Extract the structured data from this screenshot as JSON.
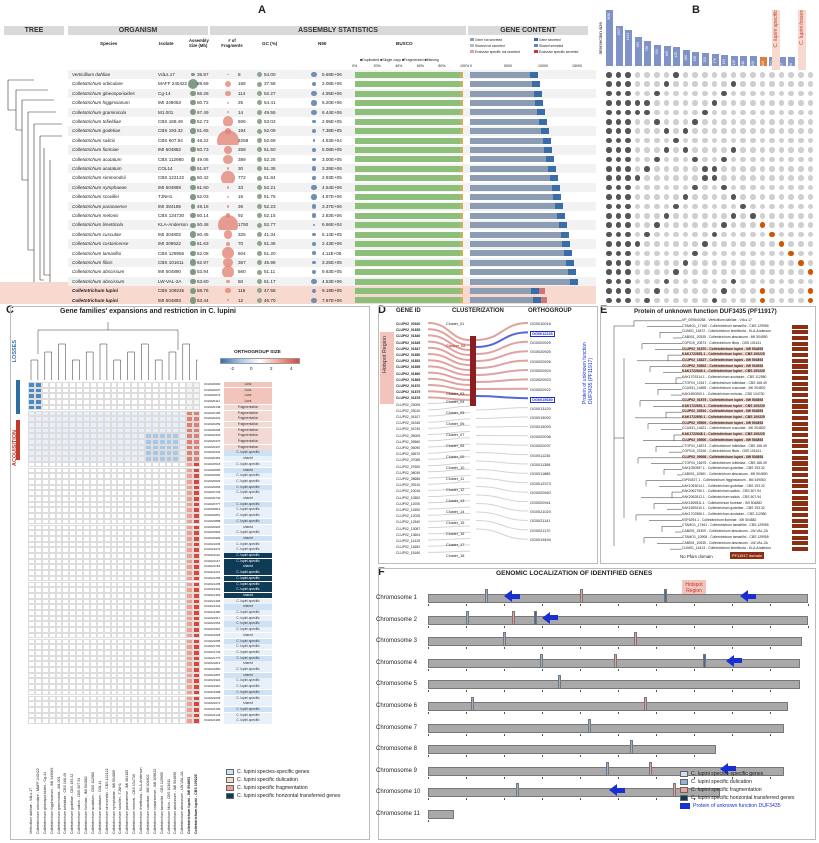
{
  "panels": {
    "A": "A",
    "B": "B",
    "C": "C",
    "D": "D",
    "E": "E",
    "F": "F"
  },
  "panelA": {
    "headers": {
      "tree": "TREE",
      "organism": "ORGANISM",
      "assembly": "ASSEMBLY STATISTICS",
      "gene_content": "GENE CONTENT"
    },
    "columns": {
      "species": "Species",
      "isolate": "Isolate",
      "size": "Assembly Size (Mb)",
      "fragments": "# of Fragments",
      "gc": "GC (%)",
      "n50": "N50",
      "busco": "BUSCO"
    },
    "busco_legend": "■Duplicated ■Single copy ■Fragmented ■Missing",
    "busco_ticks": [
      "0%",
      "20%",
      "40%",
      "60%",
      "80%",
      "100%"
    ],
    "gene_ticks": [
      "0",
      "5000",
      "10000",
      "15000"
    ],
    "gene_legend": [
      "Gene not secreted",
      "Shared not secreted",
      "Exclusive specific not secreted",
      "Gene secreted",
      "Shared secreted",
      "Exclusive specific secreted"
    ],
    "rows": [
      {
        "sp": "Verticillium dahliae",
        "iso": "VdLs.17",
        "size": "35.97",
        "frag": "8",
        "gc": "54.00",
        "n50": "5.69E+06"
      },
      {
        "sp": "Colletotrichum orbiculare",
        "iso": "MAFF 240422",
        "size": "89.69",
        "frag": "168",
        "gc": "37.58",
        "n50": "2.08E+06"
      },
      {
        "sp": "Colletotrichum gloeosporioides",
        "iso": "Cg-14",
        "size": "56.28",
        "frag": "114",
        "gc": "52.27",
        "n50": "4.95E+06"
      },
      {
        "sp": "Colletotrichum higginsianum",
        "iso": "IMI 349063",
        "size": "50.72",
        "frag": "25",
        "gc": "54.41",
        "n50": "5.20E+06"
      },
      {
        "sp": "Colletotrichum graminicola",
        "iso": "M1.001",
        "size": "57.49",
        "frag": "14",
        "gc": "49.55",
        "n50": "6.44E+06"
      },
      {
        "sp": "Colletotrichum tofieldiae",
        "iso": "CBS 168.49",
        "size": "52.73",
        "frag": "506",
        "gc": "53.02",
        "n50": "2.95E+05"
      },
      {
        "sp": "Colletotrichum godetiae",
        "iso": "CBS 193.32",
        "size": "51.65",
        "frag": "194",
        "gc": "52.09",
        "n50": "7.38E+05"
      },
      {
        "sp": "Colletotrichum salicis",
        "iso": "CBS 607.94",
        "size": "48.22",
        "frag": "2258",
        "gc": "52.69",
        "n50": "4.63E+04"
      },
      {
        "sp": "Colletotrichum fioriniae",
        "iso": "IMI 504882",
        "size": "50.73",
        "frag": "258",
        "gc": "51.50",
        "n50": "5.08E+05"
      },
      {
        "sp": "Colletotrichum acutatum",
        "iso": "CBS 112980",
        "size": "49.06",
        "frag": "389",
        "gc": "52.25",
        "n50": "3.00E+05"
      },
      {
        "sp": "Colletotrichum acutatum",
        "iso": "COL14",
        "size": "51.87",
        "frag": "30",
        "gc": "51.38",
        "n50": "3.28E+06"
      },
      {
        "sp": "Colletotrichum simmondsii",
        "iso": "CBS 122122",
        "size": "50.42",
        "frag": "772",
        "gc": "51.84",
        "n50": "2.93E+05"
      },
      {
        "sp": "Colletotrichum nymphaeae",
        "iso": "IMI 504889",
        "size": "51.60",
        "frag": "33",
        "gc": "52.21",
        "n50": "4.54E+06"
      },
      {
        "sp": "Colletotrichum scovillei",
        "iso": "TJNH1",
        "size": "52.03",
        "frag": "16",
        "gc": "51.76",
        "n50": "4.87E+06"
      },
      {
        "sp": "Colletotrichum paranaense",
        "iso": "IMI 384185",
        "size": "49.18",
        "frag": "36",
        "gc": "52.23",
        "n50": "3.37E+06"
      },
      {
        "sp": "Colletotrichum melonis",
        "iso": "CBS 134730",
        "size": "50.14",
        "frag": "92",
        "gc": "52.15",
        "n50": "2.83E+06"
      },
      {
        "sp": "Colletotrichum limetticola",
        "iso": "KLA-Anderson",
        "size": "50.48",
        "frag": "1750",
        "gc": "52.77",
        "n50": "6.66E+04"
      },
      {
        "sp": "Colletotrichum cuscutae",
        "iso": "IMI 304802",
        "size": "60.45",
        "frag": "325",
        "gc": "41.34",
        "n50": "5.14E+05"
      },
      {
        "sp": "Colletotrichum costaricense",
        "iso": "IMI 309622",
        "size": "51.63",
        "frag": "70",
        "gc": "51.36",
        "n50": "2.43E+06"
      },
      {
        "sp": "Colletotrichum tamarilloi",
        "iso": "CBS 129955",
        "size": "52.08",
        "frag": "604",
        "gc": "51.20",
        "n50": "4.11E+05"
      },
      {
        "sp": "Colletotrichum filicis",
        "iso": "CBS 101611",
        "size": "62.97",
        "frag": "367",
        "gc": "45.98",
        "n50": "3.25E+05"
      },
      {
        "sp": "Colletotrichum abscissum",
        "iso": "IMI 504890",
        "size": "53.94",
        "frag": "560",
        "gc": "51.11",
        "n50": "9.63E+05"
      },
      {
        "sp": "Colletotrichum abscissum",
        "iso": "LW-VAL-2A",
        "size": "53.60",
        "frag": "50",
        "gc": "51.17",
        "n50": "4.53E+06"
      },
      {
        "sp": "Colletotrichum lupini",
        "iso": "CBS 109225",
        "size": "58.76",
        "frag": "116",
        "gc": "47.58",
        "n50": "9.19E+05"
      },
      {
        "sp": "Colletotrichum lupini",
        "iso": "IMI 504893",
        "size": "63.44",
        "frag": "12",
        "gc": "46.70",
        "n50": "7.87E+06"
      }
    ]
  },
  "panelB": {
    "ylabel": "Intersection size",
    "col_labels": [
      "C. lupini specific",
      "C. lupini losses"
    ],
    "top_values": [
      "3636",
      "1897",
      "1494",
      "962",
      "726",
      "534",
      "465",
      "420",
      "280",
      "238",
      "203",
      "179",
      "149",
      "126",
      "118",
      "106",
      "104",
      "101",
      "97",
      "96",
      "88"
    ]
  },
  "panelC": {
    "title": "Gene families' expansions and restriction in C. lupini",
    "scale_title": "ORTHOGROUP SIZE",
    "scale_ticks": [
      "-2",
      "0",
      "2",
      "4"
    ],
    "losses": "LOSSES",
    "acquisition": "ACQUISITION",
    "labels": [
      "Loss",
      "Loss",
      "Loss",
      "Loss",
      "Fragmentation",
      "Fragmentation",
      "Fragmentation",
      "Fragmentation",
      "Fragmentation",
      "Fragmentation",
      "Fragmentation",
      "Fragmentation",
      "C. lupini-specific",
      "shared",
      "C. lupini-specific",
      "shared",
      "C. lupini-specific",
      "C. lupini-specific",
      "C. lupini-specific",
      "C. lupini-specific",
      "shared",
      "C. lupini-specific",
      "C. lupini-specific",
      "C. lupini-specific"
    ],
    "legend": [
      "C. lupini species-specific genes",
      "C. lupini specific dulication",
      "C. lupini specific fragmentation",
      "C. lupini specific horizontal transferred genes"
    ],
    "cols": [
      "Verticillium dahliae - VdLs.17",
      "Colletotrichum orbiculare - MAFF 240422",
      "Colletotrichum gloeosporioides - Cg-14",
      "Colletotrichum higginsianum - IMI 349063",
      "Colletotrichum graminicola - M1.001",
      "Colletotrichum tofieldiae - CBS 168.49",
      "Colletotrichum godetiae - CBS 193.32",
      "Colletotrichum salicis - CBS 607.94",
      "Colletotrichum fioriniae - IMI 504882",
      "Colletotrichum acutatum - CBS 112980",
      "Colletotrichum acutatum - COL14",
      "Colletotrichum simmondsii - CBS 122122",
      "Colletotrichum nymphaeae - IMI 504889",
      "Colletotrichum scovillei - TJNH1",
      "Colletotrichum paranaense - IMI 384185",
      "Colletotrichum melonis - CBS 134730",
      "Colletotrichum limetticola - KLA-Anderson",
      "Colletotrichum cuscutae - IMI 304802",
      "Colletotrichum costaricense - IMI 309622",
      "Colletotrichum tamarilloi - CBS 129955",
      "Colletotrichum filicis - CBS 101611",
      "Colletotrichum abscissum - IMI 504890",
      "Colletotrichum abscissum - LW-VAL-2A",
      "Colletotrichum lupini - IMI 504893",
      "Colletotrichum lupini - CBS 109225"
    ]
  },
  "panelD": {
    "headers": {
      "gene_id": "GENE ID",
      "clusterization": "CLUSTERIZATION",
      "orthogroup": "ORTHOGROUP"
    },
    "hotspot": "Hotspot Region",
    "side_label": "Protein of unknown function DUF3435 (PF11917)",
    "genes": [
      "CLUP02_00320",
      "CLUP02_01835",
      "CLUP02_01840",
      "CLUP02_01845",
      "CLUP02_01847",
      "CLUP02_01850",
      "CLUP02_01852",
      "CLUP02_01855",
      "CLUP02_01860",
      "CLUP02_01865",
      "CLUP02_01870",
      "CLUP02_01875",
      "CLUP02_01876",
      "CLUP02_03005",
      "CLUP02_03010",
      "CLUP02_04107",
      "CLUP02_04345",
      "CLUP02_04740",
      "CLUP02_05005",
      "CLUP02_05560",
      "CLUP02_06090",
      "CLUP02_06570",
      "CLUP02_07085",
      "CLUP02_07600",
      "CLUP02_08030",
      "CLUP02_08685",
      "CLUP02_09210",
      "CLUP02_10016",
      "CLUP02_10552",
      "CLUP02_11005",
      "CLUP02_11550",
      "CLUP02_12025",
      "CLUP02_12540",
      "CLUP02_13087",
      "CLUP02_13604",
      "CLUP02_14125",
      "CLUP02_14652",
      "CLUP02_15160"
    ],
    "clusters": [
      "Cluster_01",
      "Cluster_02",
      "Cluster_03",
      "Cluster_04",
      "Cluster_05",
      "Cluster_06",
      "Cluster_07",
      "Cluster_08",
      "Cluster_09",
      "Cluster_10",
      "Cluster_11",
      "Cluster_12",
      "Cluster_13",
      "Cluster_14",
      "Cluster_15",
      "Cluster_16",
      "Cluster_17",
      "Cluster_18"
    ],
    "orthogroups": [
      "OG0010016",
      "OG0012226",
      "OG0020929",
      "OG0020925",
      "OG0020926",
      "OG0020924",
      "OG0020923",
      "OG0020922",
      "OG0015680",
      "OG0013120",
      "OG0015092",
      "OG0015093",
      "OG0020036",
      "OG0020037",
      "OG0011236",
      "OG0011358",
      "OG0011885",
      "OG0012373",
      "OG0020940",
      "OG0020941",
      "OG0021024",
      "OG0021141",
      "OG0021170",
      "OG0019494"
    ]
  },
  "panelE": {
    "title": "Protein of unknown function DUF3435 (PF11917)",
    "legend": [
      "No Pfam domain",
      "PF11917 domain"
    ],
    "leaves": [
      "VP_009840268 - Verticillium dahliae - VdLs.17",
      "CTAMO1_17160 - Colletotrichum tamarilloi - CBS 129955",
      "CLIM01_14872 - Colletotrichum limetticola - KLA-Anderson",
      "CAB001_10535 - Colletotrichum abscissum - IMI 504890",
      "COF015_20873 - Colletotrichum filicis - CBS 101611",
      "CLUP02_01870 - Colletotrichum lupini - IMI 504893",
      "KAK1722651.1 - Colletotrichum lupini - CBS 109225",
      "CLUP02_18327 - Colletotrichum lupini - IMI 504893",
      "CLUP02_03502 - Colletotrichum lupini - IMI 504893",
      "KAK1722649.1 - Colletotrichum lupini - CBS 109225",
      "KAK1703314.1 - Colletotrichum acutatum - CBS 112980",
      "CTOF04_12447 - Colletotrichum tofieldiae - CBS 168.49",
      "CCU531_14655 - Colletotrichum cuscutae - IMI 304802",
      "KAK1690000.1 - Colletotrichum melonis - CBS 134730",
      "CLUP02_01875 - Colletotrichum lupini - IMI 504893",
      "KAK1722651.1 - Colletotrichum lupini - CBS 109225",
      "CLUP02_03510 - Colletotrichum lupini - IMI 504893",
      "KAK1722650.1 - Colletotrichum lupini - CBS 109225",
      "CLUP02_05509 - Colletotrichum lupini - IMI 504893",
      "CCU531_14621 - Colletotrichum cuscutae - IMI 304802",
      "KAK1722648.1 - Colletotrichum lupini - CBS 109225",
      "CLUP02_05500 - Colletotrichum lupini - IMI 504893",
      "CTOF04_16874 - Colletotrichum tofieldiae - CBS 168.49",
      "COF015_03196 - Colletotrichum filicis - CBS 101611",
      "CLUP02_09008 - Colletotrichum lupini - IMI 504893",
      "CTOF04_16675 - Colletotrichum tofieldiae - CBS 168.49",
      "KAK1050957.1 - Colletotrichum godetiae - CBS 193.32",
      "CAB001_10581 - Colletotrichum abscissum - IMI 504890",
      "GIP00427.1 - Colletotrichum higginsianum - IMI 349063",
      "KAK1053014.1 - Colletotrichum godetiae - CBS 193.32",
      "KAK2062796.1 - Colletotrichum salicis - CBS 607.94",
      "KAK2062812.1 - Colletotrichum salicis - CBS 607.94",
      "KAK1696511.1 - Colletotrichum fioriniae - IMI 504882",
      "KAK1699410.1 - Colletotrichum godetiae - CBS 193.32",
      "KAK1702566.1 - Colletotrichum acutatum - CBS 112980",
      "KSF6294.1 - Colletotrichum fioriniae - IMI 504882",
      "CTAMO1_17461 - Colletotrichum tamarilloi - CBS 129955",
      "CAB001_15309 - Colletotrichum abscissum - LW-VAL-2A",
      "CTAMO1_10908 - Colletotrichum tamarilloi - CBS 129955",
      "CAB501_10535 - Colletotrichum abscissum - LW-VAL-2A",
      "CLIM01_14413 - Colletotrichum limetticola - KLA-Anderson"
    ]
  },
  "panelF": {
    "title": "GENOMIC LOCALIZATION OF IDENTIFIED GENES",
    "hotspot": "Hotspot Region",
    "chromosomes": [
      "Chromosome 1",
      "Chromosome 2",
      "Chromosome 3",
      "Chromosome 4",
      "Chromosome 5",
      "Chromosome 6",
      "Chromosome 7",
      "Chromosome 8",
      "Chromosome 9",
      "Chromosome 10",
      "Chromosome 11"
    ],
    "legend": [
      "C. lupini species-specific genes",
      "C. lupini specific dulication",
      "C. lupini specific fragmentation",
      "C. lupini specific horizontal transferred genes",
      "Protein of unknown function DUF3435"
    ]
  }
}
